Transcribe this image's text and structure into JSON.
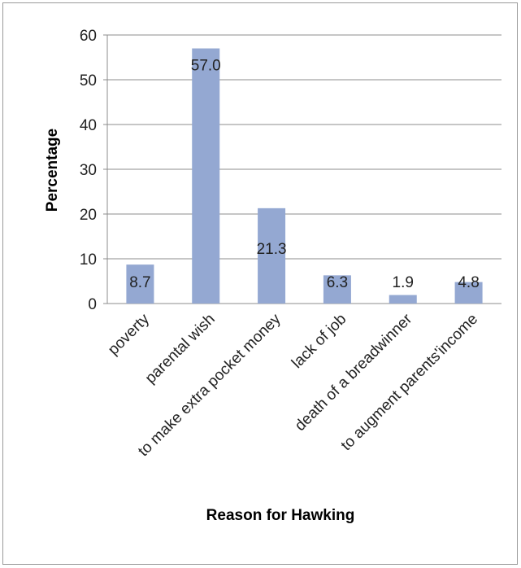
{
  "chart_data": {
    "type": "bar",
    "categories": [
      "poverty",
      "parental wish",
      "to make extra pocket money",
      "lack of job",
      "death of a breadwinner",
      "to augment parents'income"
    ],
    "values": [
      8.7,
      57.0,
      21.3,
      6.3,
      1.9,
      4.8
    ],
    "data_labels": [
      "8.7",
      "57.0",
      "21.3",
      "6.3",
      "1.9",
      "4.8"
    ],
    "xlabel": "Reason for Hawking",
    "ylabel": "Percentage",
    "ylim": [
      0,
      60
    ],
    "yticks": [
      "0",
      "10",
      "20",
      "30",
      "40",
      "50",
      "60"
    ],
    "grid": true,
    "legend": "none",
    "bar_color": "#94a8d2"
  }
}
